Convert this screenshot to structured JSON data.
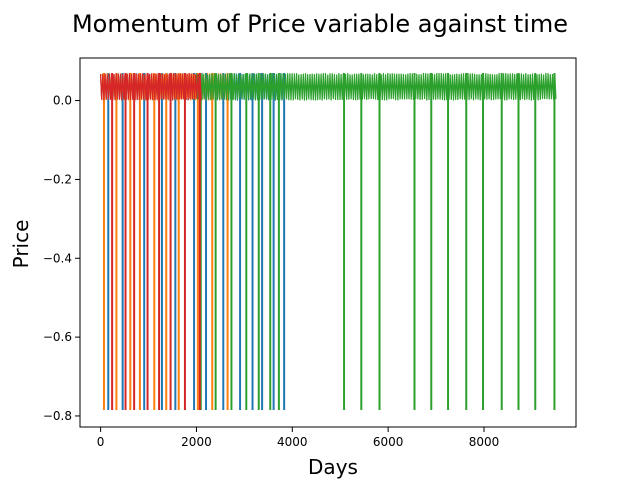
{
  "chart_data": {
    "type": "line",
    "title": "Momentum of Price variable against time",
    "xlabel": "Days",
    "ylabel": "Price",
    "xlim": [
      -430,
      9920
    ],
    "ylim": [
      -0.828,
      0.108
    ],
    "x_ticks": [
      0,
      2000,
      4000,
      6000,
      8000
    ],
    "x_tick_labels": [
      "0",
      "2000",
      "4000",
      "6000",
      "8000"
    ],
    "y_ticks": [
      0.0,
      -0.2,
      -0.4,
      -0.6,
      -0.8
    ],
    "y_tick_labels": [
      "0.0",
      "−0.2",
      "−0.4",
      "−0.6",
      "−0.8"
    ],
    "grid": false,
    "legend": "none",
    "series": [
      {
        "color": "#1f77b4",
        "x_range": [
          0,
          3830
        ],
        "band": [
          0.0,
          0.07
        ],
        "baseline": 0.0,
        "spike_value": -0.785,
        "spike_x": [
          160,
          460,
          910,
          1280,
          1560,
          1950,
          2200,
          2560,
          2910,
          3170,
          3370,
          3610,
          3830
        ]
      },
      {
        "color": "#ff7f0e",
        "x_range": [
          0,
          2650
        ],
        "band": [
          0.0,
          0.07
        ],
        "baseline": 0.0,
        "spike_value": -0.785,
        "spike_x": [
          70,
          330,
          620,
          820,
          1120,
          1370,
          1630,
          2030,
          2330,
          2650
        ]
      },
      {
        "color": "#2ca02c",
        "x_range": [
          2000,
          9500
        ],
        "band": [
          0.0,
          0.07
        ],
        "baseline": 0.0,
        "spike_value": -0.785,
        "spike_x": [
          2090,
          2400,
          2730,
          3040,
          3300,
          3540,
          3720,
          5080,
          5440,
          5820,
          6550,
          6900,
          7250,
          7630,
          7980,
          8370,
          8720,
          9070,
          9470
        ]
      },
      {
        "color": "#d62728",
        "x_range": [
          0,
          2100
        ],
        "band": [
          0.0,
          0.07
        ],
        "baseline": 0.0,
        "spike_value": -0.785,
        "spike_x": [
          240,
          520,
          700,
          980,
          1220,
          1460,
          1760,
          2070
        ]
      }
    ]
  }
}
